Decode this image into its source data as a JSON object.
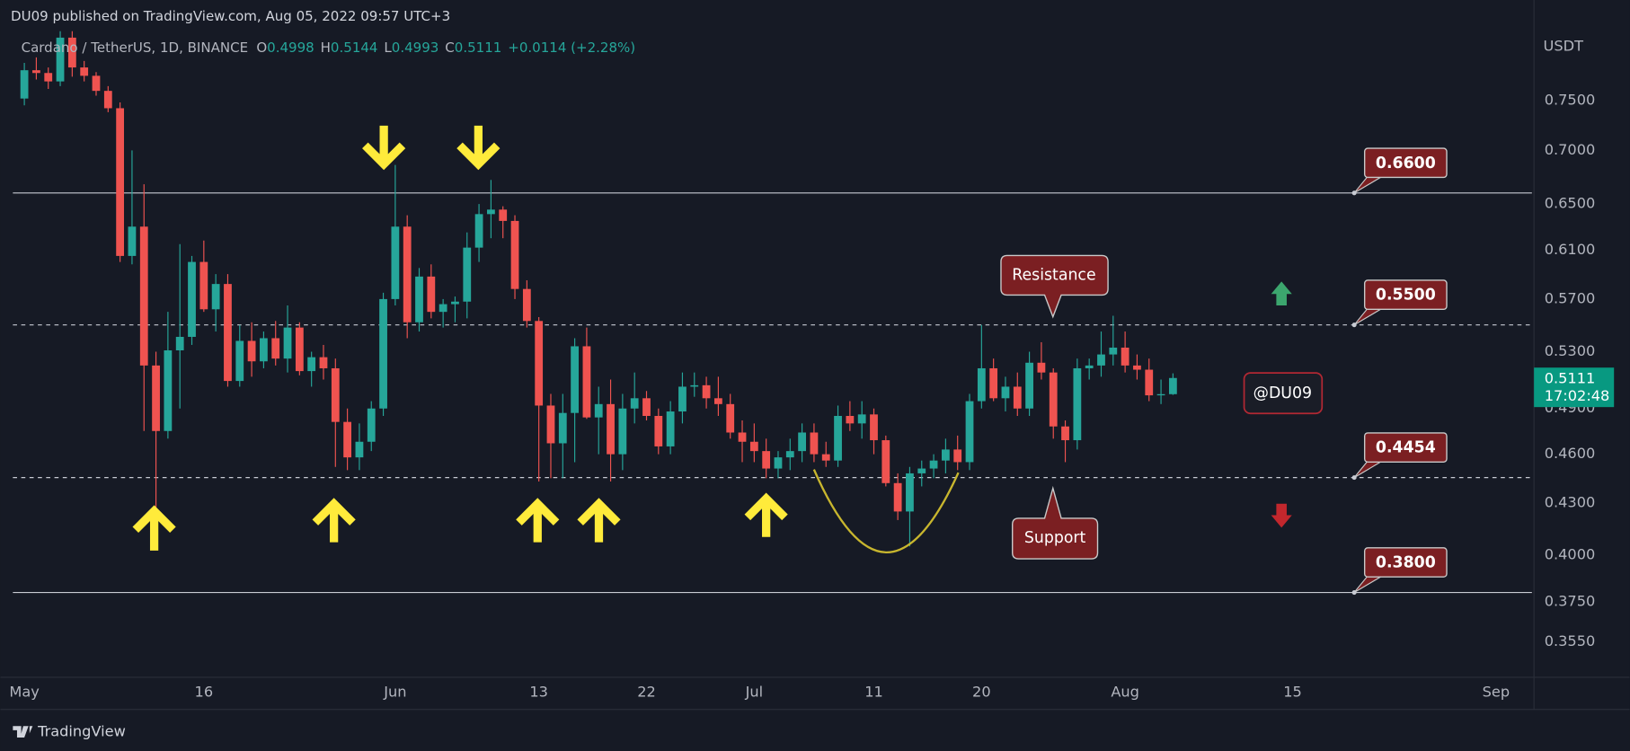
{
  "header": {
    "publisher": "DU09 published on TradingView.com, Aug 05, 2022 09:57 UTC+3"
  },
  "footer": {
    "brand": "TradingView"
  },
  "chart_data": {
    "type": "candlestick",
    "title": "Cardano / TetherUS, 1D, BINANCE",
    "ohlc_info": [
      {
        "label": "O",
        "value": "0.4998"
      },
      {
        "label": "H",
        "value": "0.5144"
      },
      {
        "label": "L",
        "value": "0.4993"
      },
      {
        "label": "C",
        "value": "0.5111"
      }
    ],
    "change": "+0.0114 (+2.28%)",
    "y_axis_label": "USDT",
    "log_scale": true,
    "up_color": "#26a69a",
    "down_color": "#ef5350",
    "x": [
      "2022-05-01",
      "2022-05-02",
      "2022-05-03",
      "2022-05-04",
      "2022-05-05",
      "2022-05-06",
      "2022-05-07",
      "2022-05-08",
      "2022-05-09",
      "2022-05-10",
      "2022-05-11",
      "2022-05-12",
      "2022-05-13",
      "2022-05-14",
      "2022-05-15",
      "2022-05-16",
      "2022-05-17",
      "2022-05-18",
      "2022-05-19",
      "2022-05-20",
      "2022-05-21",
      "2022-05-22",
      "2022-05-23",
      "2022-05-24",
      "2022-05-25",
      "2022-05-26",
      "2022-05-27",
      "2022-05-28",
      "2022-05-29",
      "2022-05-30",
      "2022-05-31",
      "2022-06-01",
      "2022-06-02",
      "2022-06-03",
      "2022-06-04",
      "2022-06-05",
      "2022-06-06",
      "2022-06-07",
      "2022-06-08",
      "2022-06-09",
      "2022-06-10",
      "2022-06-11",
      "2022-06-12",
      "2022-06-13",
      "2022-06-14",
      "2022-06-15",
      "2022-06-16",
      "2022-06-17",
      "2022-06-18",
      "2022-06-19",
      "2022-06-20",
      "2022-06-21",
      "2022-06-22",
      "2022-06-23",
      "2022-06-24",
      "2022-06-25",
      "2022-06-26",
      "2022-06-27",
      "2022-06-28",
      "2022-06-29",
      "2022-06-30",
      "2022-07-01",
      "2022-07-02",
      "2022-07-03",
      "2022-07-04",
      "2022-07-05",
      "2022-07-06",
      "2022-07-07",
      "2022-07-08",
      "2022-07-09",
      "2022-07-10",
      "2022-07-11",
      "2022-07-12",
      "2022-07-13",
      "2022-07-14",
      "2022-07-15",
      "2022-07-16",
      "2022-07-17",
      "2022-07-18",
      "2022-07-19",
      "2022-07-20",
      "2022-07-21",
      "2022-07-22",
      "2022-07-23",
      "2022-07-24",
      "2022-07-25",
      "2022-07-26",
      "2022-07-27",
      "2022-07-28",
      "2022-07-29",
      "2022-07-30",
      "2022-07-31",
      "2022-08-01",
      "2022-08-02",
      "2022-08-03",
      "2022-08-04",
      "2022-08-05"
    ],
    "open": [
      0.752,
      0.782,
      0.779,
      0.77,
      0.818,
      0.785,
      0.776,
      0.76,
      0.742,
      0.605,
      0.63,
      0.52,
      0.475,
      0.531,
      0.541,
      0.6,
      0.562,
      0.582,
      0.509,
      0.538,
      0.523,
      0.54,
      0.525,
      0.548,
      0.516,
      0.526,
      0.518,
      0.481,
      0.458,
      0.468,
      0.49,
      0.57,
      0.63,
      0.552,
      0.588,
      0.56,
      0.566,
      0.568,
      0.612,
      0.641,
      0.645,
      0.635,
      0.578,
      0.553,
      0.492,
      0.467,
      0.487,
      0.534,
      0.484,
      0.493,
      0.46,
      0.49,
      0.497,
      0.485,
      0.465,
      0.488,
      0.505,
      0.506,
      0.497,
      0.493,
      0.474,
      0.468,
      0.462,
      0.451,
      0.458,
      0.462,
      0.474,
      0.46,
      0.456,
      0.485,
      0.48,
      0.486,
      0.469,
      0.442,
      0.425,
      0.448,
      0.451,
      0.456,
      0.463,
      0.455,
      0.495,
      0.518,
      0.497,
      0.505,
      0.49,
      0.522,
      0.515,
      0.478,
      0.469,
      0.518,
      0.52,
      0.528,
      0.533,
      0.52,
      0.517,
      0.499,
      0.4998
    ],
    "high": [
      0.79,
      0.796,
      0.785,
      0.835,
      0.84,
      0.792,
      0.78,
      0.765,
      0.748,
      0.7,
      0.668,
      0.53,
      0.56,
      0.615,
      0.605,
      0.618,
      0.59,
      0.59,
      0.55,
      0.552,
      0.545,
      0.553,
      0.565,
      0.552,
      0.53,
      0.535,
      0.525,
      0.49,
      0.48,
      0.495,
      0.575,
      0.686,
      0.64,
      0.595,
      0.598,
      0.57,
      0.572,
      0.625,
      0.65,
      0.672,
      0.648,
      0.64,
      0.585,
      0.556,
      0.5,
      0.5,
      0.54,
      0.548,
      0.505,
      0.51,
      0.5,
      0.515,
      0.502,
      0.49,
      0.495,
      0.515,
      0.515,
      0.512,
      0.512,
      0.5,
      0.482,
      0.48,
      0.47,
      0.462,
      0.47,
      0.48,
      0.48,
      0.468,
      0.492,
      0.495,
      0.495,
      0.49,
      0.472,
      0.448,
      0.452,
      0.456,
      0.46,
      0.47,
      0.472,
      0.5,
      0.55,
      0.525,
      0.512,
      0.515,
      0.53,
      0.537,
      0.518,
      0.482,
      0.525,
      0.525,
      0.545,
      0.557,
      0.545,
      0.528,
      0.525,
      0.51,
      0.5144
    ],
    "low": [
      0.745,
      0.772,
      0.762,
      0.765,
      0.775,
      0.77,
      0.755,
      0.738,
      0.6,
      0.598,
      0.475,
      0.425,
      0.47,
      0.49,
      0.535,
      0.56,
      0.545,
      0.505,
      0.505,
      0.512,
      0.518,
      0.52,
      0.515,
      0.513,
      0.505,
      0.51,
      0.452,
      0.45,
      0.45,
      0.462,
      0.485,
      0.565,
      0.54,
      0.545,
      0.555,
      0.548,
      0.552,
      0.555,
      0.6,
      0.62,
      0.62,
      0.57,
      0.548,
      0.443,
      0.445,
      0.445,
      0.455,
      0.483,
      0.46,
      0.443,
      0.45,
      0.48,
      0.482,
      0.46,
      0.46,
      0.48,
      0.498,
      0.49,
      0.485,
      0.47,
      0.455,
      0.455,
      0.445,
      0.445,
      0.45,
      0.455,
      0.455,
      0.452,
      0.452,
      0.475,
      0.47,
      0.46,
      0.44,
      0.42,
      0.405,
      0.44,
      0.445,
      0.448,
      0.45,
      0.45,
      0.49,
      0.495,
      0.488,
      0.485,
      0.485,
      0.51,
      0.47,
      0.455,
      0.463,
      0.51,
      0.512,
      0.52,
      0.515,
      0.51,
      0.495,
      0.493,
      0.4993
    ],
    "close": [
      0.782,
      0.779,
      0.77,
      0.818,
      0.785,
      0.776,
      0.76,
      0.742,
      0.605,
      0.63,
      0.52,
      0.475,
      0.531,
      0.541,
      0.6,
      0.562,
      0.582,
      0.509,
      0.538,
      0.523,
      0.54,
      0.525,
      0.548,
      0.516,
      0.526,
      0.518,
      0.481,
      0.458,
      0.468,
      0.49,
      0.57,
      0.63,
      0.552,
      0.588,
      0.56,
      0.566,
      0.568,
      0.612,
      0.641,
      0.645,
      0.635,
      0.578,
      0.553,
      0.492,
      0.467,
      0.487,
      0.534,
      0.484,
      0.493,
      0.46,
      0.49,
      0.497,
      0.485,
      0.465,
      0.488,
      0.505,
      0.506,
      0.497,
      0.493,
      0.474,
      0.468,
      0.462,
      0.451,
      0.458,
      0.462,
      0.474,
      0.46,
      0.456,
      0.485,
      0.48,
      0.486,
      0.469,
      0.442,
      0.425,
      0.448,
      0.451,
      0.456,
      0.463,
      0.455,
      0.495,
      0.518,
      0.497,
      0.505,
      0.49,
      0.522,
      0.515,
      0.478,
      0.469,
      0.518,
      0.52,
      0.528,
      0.533,
      0.52,
      0.517,
      0.499,
      0.4998,
      0.5111
    ],
    "xlim": [
      "2022-04-29",
      "2022-09-04"
    ],
    "xticks": [
      {
        "value": "2022-05-01",
        "label": "May"
      },
      {
        "value": "2022-05-16",
        "label": "16"
      },
      {
        "value": "2022-06-01",
        "label": "Jun"
      },
      {
        "value": "2022-06-13",
        "label": "13"
      },
      {
        "value": "2022-06-22",
        "label": "22"
      },
      {
        "value": "2022-07-01",
        "label": "Jul"
      },
      {
        "value": "2022-07-11",
        "label": "11"
      },
      {
        "value": "2022-07-20",
        "label": "20"
      },
      {
        "value": "2022-08-01",
        "label": "Aug"
      },
      {
        "value": "2022-08-15",
        "label": "15"
      },
      {
        "value": "2022-09-01",
        "label": "Sep"
      }
    ],
    "ylim": [
      0.338,
      0.823
    ],
    "yticks": [
      {
        "value": 0.75,
        "label": "0.7500"
      },
      {
        "value": 0.7,
        "label": "0.7000"
      },
      {
        "value": 0.65,
        "label": "0.6500"
      },
      {
        "value": 0.61,
        "label": "0.6100"
      },
      {
        "value": 0.57,
        "label": "0.5700"
      },
      {
        "value": 0.53,
        "label": "0.5300"
      },
      {
        "value": 0.49,
        "label": "0.4900"
      },
      {
        "value": 0.46,
        "label": "0.4600"
      },
      {
        "value": 0.43,
        "label": "0.4300"
      },
      {
        "value": 0.4,
        "label": "0.4000"
      },
      {
        "value": 0.375,
        "label": "0.3750"
      },
      {
        "value": 0.355,
        "label": "0.3550"
      }
    ],
    "levels": [
      {
        "value": 0.66,
        "label": "0.6600",
        "style": "solid"
      },
      {
        "value": 0.55,
        "label": "0.5500",
        "style": "dashed"
      },
      {
        "value": 0.4454,
        "label": "0.4454",
        "style": "dashed"
      },
      {
        "value": 0.38,
        "label": "0.3800",
        "style": "solid"
      }
    ],
    "annotations": [
      "Resistance",
      "Support",
      "@DU09"
    ],
    "last_price": {
      "label": "0.5111",
      "countdown": "17:02:48"
    }
  }
}
